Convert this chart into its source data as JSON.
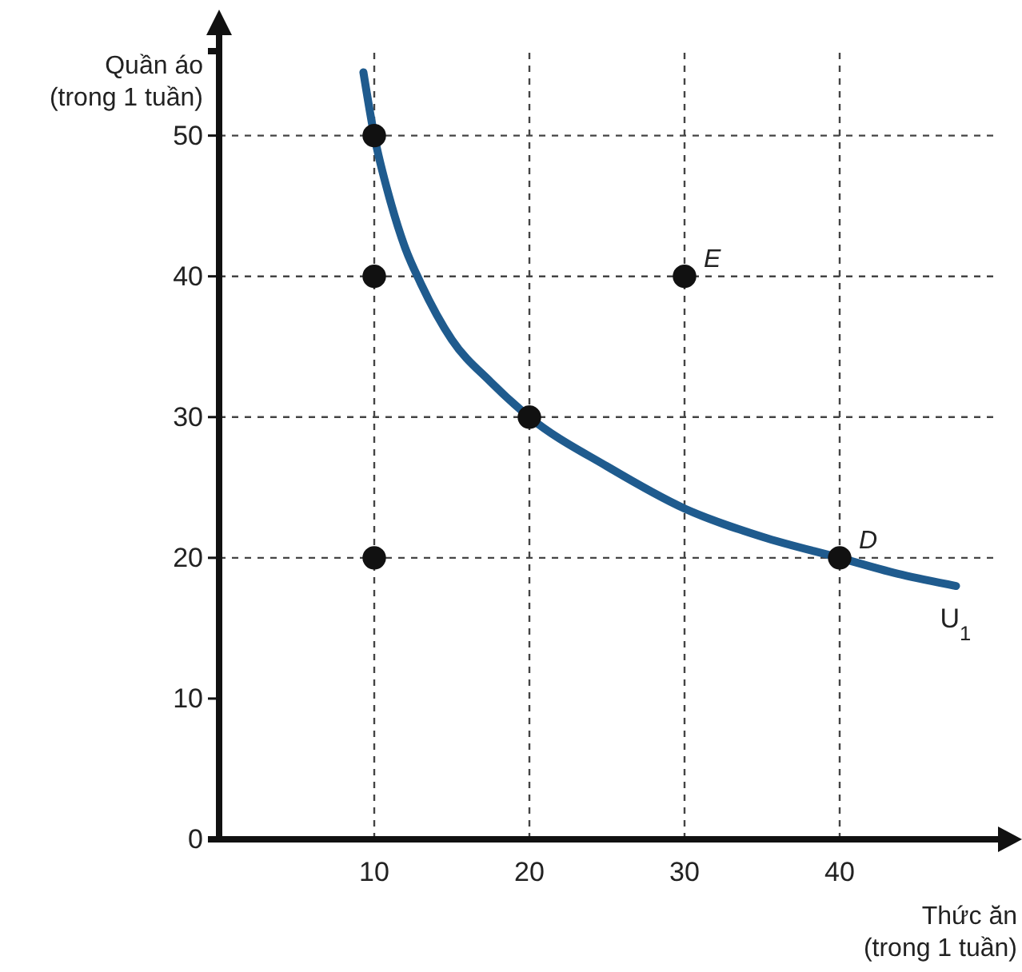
{
  "chart_data": {
    "type": "line",
    "xlabel": "Thức ăn\n(trong 1 tuần)",
    "ylabel": "Quần áo\n(trong 1 tuần)",
    "xlim": [
      0,
      50
    ],
    "ylim": [
      0,
      56
    ],
    "xticks": [
      10,
      20,
      30,
      40
    ],
    "yticks": [
      0,
      10,
      20,
      30,
      40,
      50
    ],
    "grid": false,
    "line_style": "solid",
    "series": [
      {
        "name": "U$_{1}$",
        "color": "#1f5b8e",
        "marker": "none",
        "x": [
          9.3,
          10,
          11,
          12,
          13,
          15,
          17.5,
          20,
          25,
          30,
          35,
          40,
          44,
          47.5
        ],
        "values": [
          54.5,
          50,
          45.5,
          42,
          39.5,
          35.5,
          32.5,
          30,
          26.5,
          23.5,
          21.5,
          20,
          18.8,
          18
        ]
      },
      {
        "type": "scatter",
        "color": "#111111",
        "marker": "circle",
        "x": [
          10,
          10,
          10,
          20,
          30,
          40
        ],
        "values": [
          50,
          40,
          20,
          30,
          40,
          20
        ]
      }
    ],
    "ref_lines": [
      {
        "axis": "x",
        "value": 10,
        "line_style": "dashed",
        "color": "#444444"
      },
      {
        "axis": "x",
        "value": 20,
        "line_style": "dashed",
        "color": "#444444"
      },
      {
        "axis": "x",
        "value": 30,
        "line_style": "dashed",
        "color": "#444444"
      },
      {
        "axis": "x",
        "value": 40,
        "line_style": "dashed",
        "color": "#444444"
      },
      {
        "axis": "y",
        "value": 20,
        "line_style": "dashed",
        "color": "#444444"
      },
      {
        "axis": "y",
        "value": 30,
        "line_style": "dashed",
        "color": "#444444"
      },
      {
        "axis": "y",
        "value": 40,
        "line_style": "dashed",
        "color": "#444444"
      },
      {
        "axis": "y",
        "value": 50,
        "line_style": "dashed",
        "color": "#444444"
      }
    ],
    "annotations": [
      {
        "text": "E",
        "x": 30,
        "y": 40
      },
      {
        "text": "D",
        "x": 40,
        "y": 20
      }
    ]
  }
}
